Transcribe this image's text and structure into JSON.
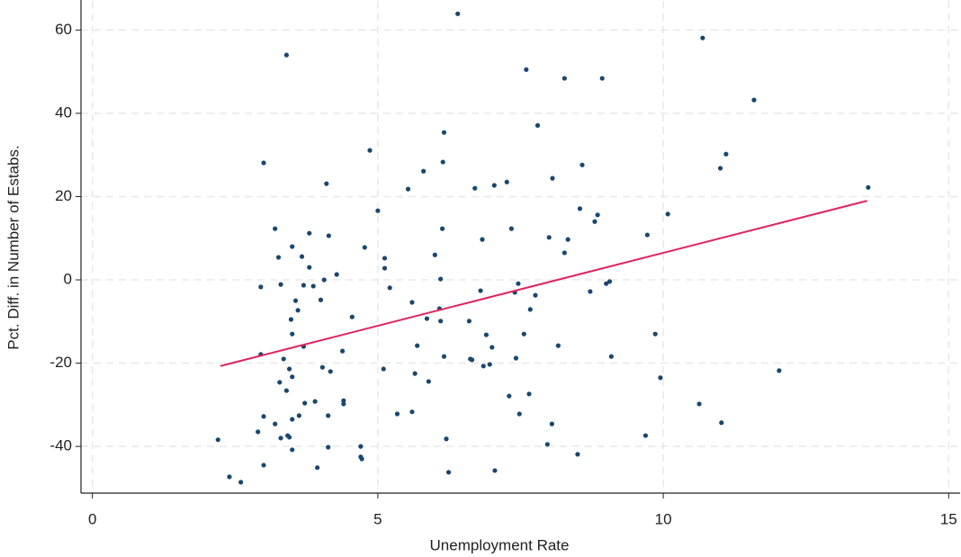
{
  "chart_data": {
    "type": "scatter",
    "x_label": "Unemployment Rate",
    "y_label": "Pct. Diff. in Number of Estabs.",
    "color": "#1a476f",
    "x": [
      2.2,
      2.4,
      2.6,
      2.9,
      2.95,
      2.95,
      3.0,
      3.0,
      3.0,
      3.2,
      3.2,
      3.26,
      3.28,
      3.3,
      3.3,
      3.35,
      3.4,
      3.4,
      3.42,
      3.45,
      3.45,
      3.48,
      3.5,
      3.5,
      3.5,
      3.5,
      3.5,
      3.56,
      3.6,
      3.62,
      3.67,
      3.7,
      3.7,
      3.72,
      3.8,
      3.8,
      3.87,
      3.9,
      3.94,
      4.0,
      4.03,
      4.06,
      4.1,
      4.13,
      4.13,
      4.14,
      4.17,
      4.28,
      4.38,
      4.4,
      4.4,
      4.55,
      4.7,
      4.7,
      4.72,
      4.77,
      4.86,
      5.0,
      5.1,
      5.12,
      5.12,
      5.21,
      5.34,
      5.53,
      5.6,
      5.6,
      5.65,
      5.69,
      5.8,
      5.86,
      5.89,
      6.0,
      6.08,
      6.1,
      6.1,
      6.13,
      6.14,
      6.16,
      6.16,
      6.2,
      6.24,
      6.4,
      6.6,
      6.62,
      6.65,
      6.7,
      6.8,
      6.83,
      6.85,
      6.9,
      6.96,
      7.0,
      7.04,
      7.05,
      7.26,
      7.3,
      7.34,
      7.4,
      7.42,
      7.46,
      7.48,
      7.56,
      7.6,
      7.65,
      7.67,
      7.76,
      7.8,
      7.97,
      8.0,
      8.05,
      8.06,
      8.16,
      8.27,
      8.27,
      8.33,
      8.5,
      8.54,
      8.58,
      8.72,
      8.8,
      8.85,
      8.93,
      9.0,
      9.06,
      9.09,
      9.69,
      9.72,
      9.86,
      9.95,
      10.08,
      10.63,
      10.69,
      11.0,
      11.02,
      11.1,
      11.59,
      12.03,
      13.59
    ],
    "y": [
      -38.4,
      -47.3,
      -48.6,
      -36.5,
      -17.9,
      -1.7,
      -32.8,
      28.1,
      -44.5,
      12.3,
      -34.6,
      5.4,
      -24.6,
      -1.1,
      -38,
      -19,
      54,
      -26.6,
      -37.4,
      -21.4,
      -37.8,
      -9.5,
      -13,
      -23.3,
      -33.5,
      -40.8,
      8,
      -5,
      -7.3,
      -32.6,
      5.6,
      -1.3,
      -16,
      -29.6,
      11.2,
      3,
      -1.5,
      -29.2,
      -45.1,
      -4.8,
      -21,
      0,
      23.1,
      -32.6,
      -40.2,
      10.6,
      -22,
      1.3,
      -17.1,
      -29,
      -29.8,
      -8.9,
      -40,
      -42.5,
      -43,
      7.8,
      31.1,
      16.6,
      -21.4,
      5.2,
      2.8,
      -1.9,
      -32.2,
      21.8,
      -5.4,
      -31.7,
      -22.5,
      -15.8,
      26.1,
      -9.3,
      -24.4,
      6,
      -6.9,
      -9.9,
      0.2,
      12.3,
      28.3,
      35.4,
      -18.4,
      -38.2,
      -46.2,
      63.9,
      -9.9,
      -19,
      -19.2,
      22,
      -2.6,
      9.7,
      -20.7,
      -13.2,
      -20.3,
      -16.2,
      22.7,
      -45.8,
      23.5,
      -27.9,
      12.3,
      -3,
      -18.8,
      -0.9,
      -32.2,
      -13,
      50.5,
      -27.4,
      -7.1,
      -3.7,
      37.1,
      -39.5,
      10.2,
      -34.6,
      24.4,
      -15.8,
      48.4,
      6.5,
      9.7,
      -41.9,
      17.1,
      27.6,
      -2.8,
      14,
      15.6,
      48.4,
      -0.9,
      -0.4,
      -18.4,
      -37.4,
      10.8,
      -13,
      -23.5,
      15.8,
      -29.8,
      58.1,
      26.8,
      -34.3,
      30.2,
      43.2,
      -21.8,
      22.2
    ],
    "fit": {
      "x": [
        2.24,
        13.57
      ],
      "y": [
        -20.7,
        19.0
      ],
      "color": "#e0245e"
    },
    "xlim": [
      -0.2,
      15.2
    ],
    "ylim": [
      -51,
      67
    ],
    "xticks": [
      0,
      5,
      10,
      15
    ],
    "yticks": [
      -40,
      -20,
      0,
      20,
      40,
      60
    ],
    "grid": true
  }
}
